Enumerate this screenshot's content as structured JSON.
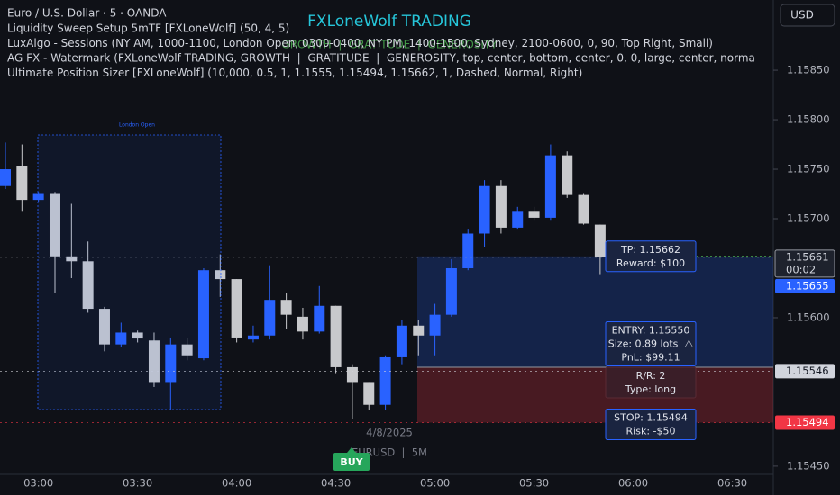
{
  "chart_data": {
    "type": "candlestick",
    "title": "Euro / U.S. Dollar · 5 · OANDA",
    "indicators": [
      "Liquidity Sweep Setup 5mTF [FXLoneWolf] (50, 4, 5)",
      "LuxAlgo - Sessions (NY AM, 1000-1100, London Open, 0300-0400, NY PM, 1400-1500, Sydney, 2100-0600, 0, 90, Top Right, Small)",
      "AG FX - Watermark (FXLoneWolf TRADING, GROWTH  |  GRATITUDE  |  GENEROSITY, top, center, bottom, center, 0, 0, large, center, norma",
      "Ultimate Position Sizer [FXLoneWolf] (10,000, 0.5, 1, 1.1555, 1.15494, 1.15662, 1, Dashed, Normal, Right)"
    ],
    "watermark": "FXLoneWolf TRADING",
    "watermark_sub": "GROWTH  |  GRATITUDE  |  GENEROSITY",
    "currency_button": "USD",
    "session_label": "London Open",
    "date_label": "4/8/2025",
    "symbol_label": "EURUSD  |  5M",
    "signal_label": "BUY",
    "categories": [
      null,
      null,
      "03:00",
      null,
      null,
      null,
      null,
      null,
      "03:30",
      null,
      null,
      null,
      null,
      null,
      "04:00",
      null,
      null,
      null,
      null,
      null,
      "04:30",
      null,
      null,
      null,
      null,
      null,
      "05:00",
      null,
      null,
      null,
      null,
      null,
      "05:30",
      null,
      null,
      null,
      null,
      null,
      "06:00",
      null,
      null,
      null,
      null,
      null,
      "06:30",
      null,
      null
    ],
    "open": [
      1.15733,
      1.15753,
      1.15719,
      1.15725,
      1.15662,
      1.15657,
      1.15609,
      1.15573,
      1.15585,
      1.15577,
      1.15535,
      1.15573,
      1.15559,
      1.15648,
      1.15639,
      1.15578,
      1.15582,
      1.15618,
      1.15601,
      1.15586,
      1.15612,
      1.1555,
      1.15535,
      1.15512,
      1.1556,
      1.15592,
      1.15582,
      1.15603,
      1.1565,
      1.15685,
      1.15733,
      1.15691,
      1.15707,
      1.15701,
      1.15764,
      1.15724,
      1.15694,
      null,
      null,
      null,
      null,
      null,
      null,
      null,
      null,
      null,
      null
    ],
    "high": [
      1.15777,
      1.15775,
      1.15727,
      1.15727,
      1.15715,
      1.15677,
      1.15611,
      1.15595,
      1.15587,
      1.15585,
      1.1558,
      1.1558,
      1.1565,
      1.15664,
      1.15639,
      1.15592,
      1.15653,
      1.15625,
      1.1561,
      1.15632,
      1.15612,
      1.15553,
      1.15535,
      1.15562,
      1.15598,
      1.15598,
      1.15614,
      1.15659,
      1.15689,
      1.15739,
      1.15739,
      1.15712,
      1.15712,
      1.15775,
      1.15768,
      1.15725,
      1.15694,
      null,
      null,
      null,
      null,
      null,
      null,
      null,
      null,
      null,
      null
    ],
    "low": [
      1.1573,
      1.15707,
      1.15717,
      1.15625,
      1.1564,
      1.15605,
      1.15566,
      1.1557,
      1.15575,
      1.1553,
      1.15507,
      1.15557,
      1.15557,
      1.15621,
      1.15575,
      1.15575,
      1.15578,
      1.15589,
      1.15578,
      1.15584,
      1.15544,
      1.15498,
      1.15507,
      1.15507,
      1.15553,
      1.15562,
      1.15562,
      1.15601,
      1.15648,
      1.15671,
      1.15685,
      1.15689,
      1.15698,
      1.15698,
      1.15721,
      1.15694,
      1.15644,
      null,
      null,
      null,
      null,
      null,
      null,
      null,
      null,
      null,
      null
    ],
    "close": [
      1.1575,
      1.15719,
      1.15725,
      1.15662,
      1.15657,
      1.15609,
      1.15573,
      1.15585,
      1.15579,
      1.15535,
      1.15573,
      1.15562,
      1.15648,
      1.15639,
      1.1558,
      1.15582,
      1.15618,
      1.15603,
      1.15586,
      1.15612,
      1.1555,
      1.15535,
      1.15512,
      1.1556,
      1.15592,
      1.15582,
      1.15603,
      1.1565,
      1.15685,
      1.15733,
      1.15691,
      1.15707,
      1.15701,
      1.15764,
      1.15724,
      1.15695,
      1.15661,
      null,
      null,
      null,
      null,
      null,
      null,
      null,
      null,
      null,
      null
    ],
    "up_color": "#2962ff",
    "down_color": "#c8c9cc",
    "ylim": [
      1.15439,
      1.15921
    ],
    "yticks": [
      {
        "value": 1.1545,
        "label": "1.15450"
      },
      {
        "value": 1.156,
        "label": "1.15600"
      },
      {
        "value": 1.157,
        "label": "1.15700"
      },
      {
        "value": 1.1575,
        "label": "1.15750"
      },
      {
        "value": 1.158,
        "label": "1.15800"
      },
      {
        "value": 1.1585,
        "label": "1.15850"
      }
    ],
    "position": {
      "take_profit": {
        "value": 1.15662,
        "label": "TP: 1.15662"
      },
      "reward": "Reward: $100",
      "entry": {
        "value": 1.1555,
        "label": "ENTRY: 1.15550"
      },
      "size": "Size: 0.89 lots  ⚠",
      "pnl": "PnL: $99.11",
      "rr": "R/R: 2",
      "trade_type": "Type: long",
      "stop": {
        "value": 1.15494,
        "label": "STOP: 1.15494"
      },
      "risk": "Risk: -$50"
    },
    "price_labels": [
      {
        "value": 1.15661,
        "label": "1.15661",
        "sub": "00:02",
        "color": "#1e222d",
        "text_color": "#d1d4dc"
      },
      {
        "value": 1.15655,
        "label": "1.15655",
        "color": "#2962ff",
        "text_color": "#ffffff"
      },
      {
        "value": 1.15546,
        "label": "1.15546",
        "color": "#d1d4dc",
        "text_color": "#131722"
      },
      {
        "value": 1.15494,
        "label": "1.15494",
        "color": "#f23645",
        "text_color": "#ffffff"
      }
    ]
  }
}
